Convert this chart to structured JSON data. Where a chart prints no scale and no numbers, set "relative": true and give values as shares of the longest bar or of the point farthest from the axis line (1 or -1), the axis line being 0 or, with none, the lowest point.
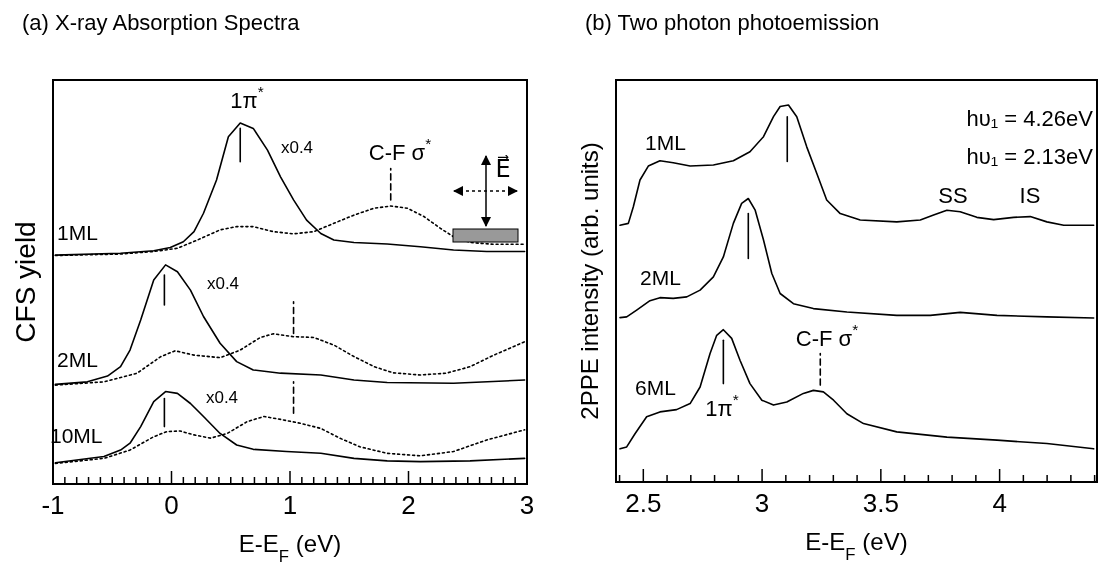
{
  "chart_data": [
    {
      "type": "line",
      "title": "(a) X-ray Absorption Spectra",
      "xlabel": "E-E$_{F}$ (eV)",
      "ylabel": "CFS yield",
      "relative": true,
      "tick_labels": "x",
      "grid": false,
      "line_style": "solid",
      "marker": "none",
      "xlim": [
        -1,
        3
      ],
      "xticks": [
        -1,
        {
          "value": -0.9,
          "label": null
        },
        {
          "value": -0.8,
          "label": null
        },
        {
          "value": -0.7,
          "label": null
        },
        {
          "value": -0.6,
          "label": null
        },
        {
          "value": -0.5,
          "label": null
        },
        {
          "value": -0.4,
          "label": null
        },
        {
          "value": -0.3,
          "label": null
        },
        {
          "value": -0.2,
          "label": null
        },
        {
          "value": -0.1,
          "label": null
        },
        0,
        {
          "value": 0.1,
          "label": null
        },
        {
          "value": 0.2,
          "label": null
        },
        {
          "value": 0.3,
          "label": null
        },
        {
          "value": 0.4,
          "label": null
        },
        {
          "value": 0.5,
          "label": null
        },
        {
          "value": 0.6,
          "label": null
        },
        {
          "value": 0.7,
          "label": null
        },
        {
          "value": 0.8,
          "label": null
        },
        {
          "value": 0.9,
          "label": null
        },
        1,
        {
          "value": 1.1,
          "label": null
        },
        {
          "value": 1.2,
          "label": null
        },
        {
          "value": 1.3,
          "label": null
        },
        {
          "value": 1.4,
          "label": null
        },
        {
          "value": 1.5,
          "label": null
        },
        {
          "value": 1.6,
          "label": null
        },
        {
          "value": 1.7,
          "label": null
        },
        {
          "value": 1.8,
          "label": null
        },
        {
          "value": 1.9,
          "label": null
        },
        2,
        {
          "value": 2.1,
          "label": null
        },
        {
          "value": 2.2,
          "label": null
        },
        {
          "value": 2.3,
          "label": null
        },
        {
          "value": 2.4,
          "label": null
        },
        {
          "value": 2.5,
          "label": null
        },
        {
          "value": 2.6,
          "label": null
        },
        {
          "value": 2.7,
          "label": null
        },
        {
          "value": 2.8,
          "label": null
        },
        {
          "value": 2.9,
          "label": null
        },
        3
      ],
      "series": [
        {
          "name": "1ML",
          "color": "#000000",
          "x": [
            -0.98,
            -0.43,
            -0.15,
            -0.01,
            0.1,
            0.19,
            0.27,
            0.38,
            0.48,
            0.58,
            0.69,
            0.81,
            0.92,
            1.03,
            1.14,
            1.26,
            1.37,
            1.54,
            1.82,
            2.1,
            2.38,
            2.66,
            2.98
          ],
          "values": [
            0.634,
            0.639,
            0.646,
            0.655,
            0.671,
            0.699,
            0.75,
            0.842,
            0.962,
            1.0,
            0.985,
            0.925,
            0.851,
            0.787,
            0.731,
            0.694,
            0.676,
            0.669,
            0.665,
            0.657,
            0.648,
            0.644,
            0.644
          ]
        },
        {
          "color": "#000000",
          "line_style": "dotted",
          "x": [
            -0.98,
            -0.43,
            -0.15,
            0.05,
            0.22,
            0.41,
            0.55,
            0.69,
            0.86,
            1.03,
            1.2,
            1.37,
            1.54,
            1.71,
            1.85,
            1.99,
            2.13,
            2.27,
            2.38,
            2.52,
            2.72,
            2.98
          ],
          "values": [
            0.633,
            0.637,
            0.644,
            0.653,
            0.676,
            0.704,
            0.713,
            0.713,
            0.699,
            0.693,
            0.699,
            0.722,
            0.745,
            0.764,
            0.77,
            0.764,
            0.741,
            0.708,
            0.685,
            0.669,
            0.664,
            0.664
          ]
        },
        {
          "name": "2ML",
          "color": "#000000",
          "x": [
            -0.98,
            -0.71,
            -0.54,
            -0.43,
            -0.35,
            -0.26,
            -0.15,
            -0.05,
            0.05,
            0.16,
            0.27,
            0.41,
            0.55,
            0.69,
            0.92,
            1.26,
            1.54,
            1.82,
            2.38,
            2.98
          ],
          "values": [
            0.276,
            0.283,
            0.299,
            0.325,
            0.371,
            0.454,
            0.565,
            0.607,
            0.588,
            0.537,
            0.464,
            0.39,
            0.339,
            0.316,
            0.307,
            0.302,
            0.288,
            0.281,
            0.279,
            0.288
          ]
        },
        {
          "color": "#000000",
          "line_style": "dotted",
          "x": [
            -0.98,
            -0.57,
            -0.29,
            -0.09,
            0.03,
            0.19,
            0.41,
            0.58,
            0.75,
            0.86,
            1.03,
            1.2,
            1.37,
            1.54,
            1.71,
            1.87,
            2.1,
            2.32,
            2.52,
            2.72,
            2.98
          ],
          "values": [
            0.274,
            0.283,
            0.307,
            0.353,
            0.369,
            0.357,
            0.35,
            0.371,
            0.406,
            0.416,
            0.408,
            0.406,
            0.385,
            0.353,
            0.325,
            0.308,
            0.302,
            0.307,
            0.325,
            0.357,
            0.394
          ]
        },
        {
          "name": "10ML",
          "color": "#000000",
          "x": [
            -0.98,
            -0.57,
            -0.43,
            -0.35,
            -0.26,
            -0.15,
            -0.05,
            0.05,
            0.16,
            0.27,
            0.41,
            0.55,
            0.69,
            0.97,
            1.26,
            1.54,
            1.82,
            2.1,
            2.52,
            2.98
          ],
          "values": [
            0.059,
            0.076,
            0.094,
            0.113,
            0.159,
            0.228,
            0.256,
            0.251,
            0.223,
            0.187,
            0.14,
            0.108,
            0.096,
            0.09,
            0.085,
            0.071,
            0.064,
            0.062,
            0.064,
            0.071
          ]
        },
        {
          "color": "#000000",
          "line_style": "dotted",
          "x": [
            -0.98,
            -0.57,
            -0.35,
            -0.15,
            -0.04,
            0.07,
            0.19,
            0.33,
            0.47,
            0.64,
            0.78,
            0.92,
            1.09,
            1.26,
            1.42,
            1.59,
            1.82,
            2.1,
            2.38,
            2.66,
            2.98
          ],
          "values": [
            0.057,
            0.071,
            0.094,
            0.131,
            0.145,
            0.147,
            0.136,
            0.127,
            0.14,
            0.173,
            0.187,
            0.179,
            0.168,
            0.154,
            0.127,
            0.103,
            0.085,
            0.078,
            0.09,
            0.122,
            0.15
          ]
        },
        {
          "color": "#000000",
          "x": [
            0.58,
            0.58
          ],
          "values": [
            0.893,
            0.985
          ]
        },
        {
          "color": "#000000",
          "line_style": "dashed",
          "x": [
            1.85,
            1.85
          ],
          "values": [
            0.787,
            0.874
          ]
        },
        {
          "color": "#000000",
          "x": [
            -0.06,
            -0.06
          ],
          "values": [
            0.496,
            0.579
          ]
        },
        {
          "color": "#000000",
          "line_style": "dashed",
          "x": [
            1.03,
            1.03
          ],
          "values": [
            0.417,
            0.505
          ]
        },
        {
          "color": "#000000",
          "x": [
            -0.06,
            -0.06
          ],
          "values": [
            0.159,
            0.237
          ]
        },
        {
          "color": "#000000",
          "line_style": "dashed",
          "x": [
            1.03,
            1.03
          ],
          "values": [
            0.196,
            0.283
          ]
        }
      ],
      "annotations": [
        "1π$^{*}$",
        "x0.4",
        "C-F σ$^{*}$",
        "x0.4",
        "x0.4",
        "E⃗"
      ]
    },
    {
      "type": "line",
      "title": "(b) Two photon photoemission",
      "xlabel": "E-E$_{F}$ (eV)",
      "ylabel": "2PPE intensity (arb. units)",
      "relative": true,
      "tick_labels": "x",
      "grid": false,
      "line_style": "solid",
      "marker": "none",
      "xlim": [
        2.385,
        4.41
      ],
      "xticks": [
        {
          "value": 2.4,
          "label": null
        },
        2.5,
        {
          "value": 2.6,
          "label": null
        },
        {
          "value": 2.7,
          "label": null
        },
        {
          "value": 2.8,
          "label": null
        },
        {
          "value": 2.9,
          "label": null
        },
        3,
        {
          "value": 3.1,
          "label": null
        },
        {
          "value": 3.2,
          "label": null
        },
        {
          "value": 3.3,
          "label": null
        },
        {
          "value": 3.4,
          "label": null
        },
        3.5,
        {
          "value": 3.6,
          "label": null
        },
        {
          "value": 3.7,
          "label": null
        },
        {
          "value": 3.8,
          "label": null
        },
        {
          "value": 3.9,
          "label": null
        },
        4,
        {
          "value": 4.1,
          "label": null
        },
        {
          "value": 4.2,
          "label": null
        },
        {
          "value": 4.3,
          "label": null
        },
        {
          "value": 4.4,
          "label": null
        }
      ],
      "series": [
        {
          "name": "1ML",
          "color": "#000000",
          "x": [
            2.402,
            2.437,
            2.458,
            2.486,
            2.521,
            2.57,
            2.626,
            2.697,
            2.795,
            2.879,
            2.949,
            3.006,
            3.048,
            3.076,
            3.111,
            3.146,
            3.188,
            3.23,
            3.272,
            3.329,
            3.413,
            3.567,
            3.666,
            3.722,
            3.778,
            3.834,
            3.904,
            3.975,
            4.059,
            4.129,
            4.199,
            4.27,
            4.396
          ],
          "values": [
            0.681,
            0.686,
            0.73,
            0.801,
            0.838,
            0.852,
            0.847,
            0.838,
            0.841,
            0.852,
            0.876,
            0.916,
            0.969,
            0.996,
            1.0,
            0.969,
            0.889,
            0.819,
            0.748,
            0.712,
            0.695,
            0.69,
            0.695,
            0.708,
            0.721,
            0.717,
            0.702,
            0.696,
            0.702,
            0.704,
            0.69,
            0.681,
            0.681
          ]
        },
        {
          "name": "2ML",
          "color": "#000000",
          "x": [
            2.402,
            2.43,
            2.472,
            2.528,
            2.57,
            2.626,
            2.683,
            2.739,
            2.795,
            2.837,
            2.879,
            2.914,
            2.942,
            2.971,
            3.006,
            3.041,
            3.076,
            3.132,
            3.216,
            3.357,
            3.567,
            3.708,
            3.834,
            3.989,
            4.199,
            4.396
          ],
          "values": [
            0.436,
            0.438,
            0.456,
            0.481,
            0.489,
            0.487,
            0.491,
            0.509,
            0.544,
            0.597,
            0.686,
            0.739,
            0.752,
            0.721,
            0.642,
            0.553,
            0.5,
            0.473,
            0.46,
            0.451,
            0.442,
            0.442,
            0.45,
            0.442,
            0.438,
            0.435
          ]
        },
        {
          "name": "6ML",
          "color": "#000000",
          "x": [
            2.402,
            2.43,
            2.465,
            2.514,
            2.57,
            2.64,
            2.697,
            2.739,
            2.781,
            2.809,
            2.837,
            2.872,
            2.907,
            2.949,
            2.999,
            3.048,
            3.104,
            3.174,
            3.216,
            3.258,
            3.301,
            3.357,
            3.427,
            3.567,
            3.778,
            3.989,
            4.199,
            4.396
          ],
          "values": [
            0.088,
            0.093,
            0.128,
            0.173,
            0.186,
            0.192,
            0.208,
            0.252,
            0.341,
            0.389,
            0.404,
            0.381,
            0.323,
            0.261,
            0.217,
            0.204,
            0.212,
            0.235,
            0.243,
            0.239,
            0.217,
            0.181,
            0.155,
            0.133,
            0.119,
            0.111,
            0.102,
            0.088
          ]
        },
        {
          "color": "#000000",
          "x": [
            3.106,
            3.106
          ],
          "values": [
            0.85,
            0.969
          ]
        },
        {
          "color": "#000000",
          "x": [
            2.942,
            2.942
          ],
          "values": [
            0.593,
            0.712
          ]
        },
        {
          "color": "#000000",
          "x": [
            2.837,
            2.837
          ],
          "values": [
            0.261,
            0.376
          ]
        },
        {
          "color": "#000000",
          "line_style": "dashed",
          "x": [
            3.245,
            3.245
          ],
          "values": [
            0.257,
            0.341
          ]
        }
      ],
      "annotations": [
        "hυ₁ = 4.26eV",
        "hυ₁ = 2.13eV",
        "SS",
        "IS",
        "C-F σ$^{*}$",
        "1π$^{*}$"
      ]
    }
  ]
}
